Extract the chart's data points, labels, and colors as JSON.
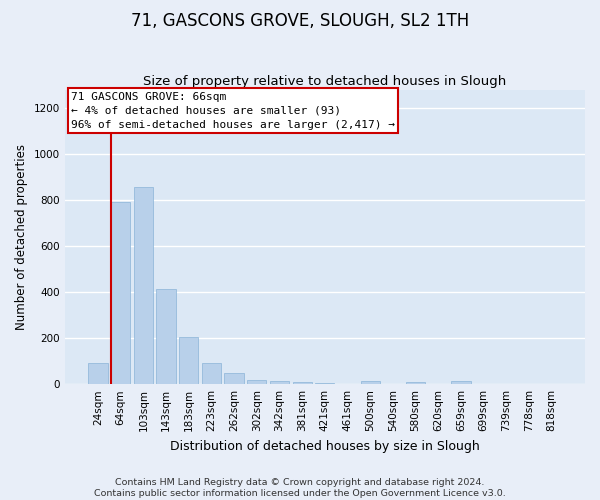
{
  "title1": "71, GASCONS GROVE, SLOUGH, SL2 1TH",
  "title2": "Size of property relative to detached houses in Slough",
  "xlabel": "Distribution of detached houses by size in Slough",
  "ylabel": "Number of detached properties",
  "categories": [
    "24sqm",
    "64sqm",
    "103sqm",
    "143sqm",
    "183sqm",
    "223sqm",
    "262sqm",
    "302sqm",
    "342sqm",
    "381sqm",
    "421sqm",
    "461sqm",
    "500sqm",
    "540sqm",
    "580sqm",
    "620sqm",
    "659sqm",
    "699sqm",
    "739sqm",
    "778sqm",
    "818sqm"
  ],
  "values": [
    93,
    793,
    857,
    415,
    203,
    90,
    50,
    20,
    15,
    10,
    5,
    0,
    15,
    0,
    10,
    0,
    15,
    0,
    0,
    0,
    0
  ],
  "bar_color": "#b8d0ea",
  "bar_edge_color": "#8ab4d8",
  "property_line_color": "#cc0000",
  "annotation_line1": "71 GASCONS GROVE: 66sqm",
  "annotation_line2": "← 4% of detached houses are smaller (93)",
  "annotation_line3": "96% of semi-detached houses are larger (2,417) →",
  "annotation_box_edge_color": "#cc0000",
  "ylim": [
    0,
    1280
  ],
  "yticks": [
    0,
    200,
    400,
    600,
    800,
    1000,
    1200
  ],
  "bg_color": "#dce8f5",
  "fig_bg_color": "#e8eef8",
  "grid_color": "#ffffff",
  "title1_fontsize": 12,
  "title2_fontsize": 9.5,
  "xlabel_fontsize": 9,
  "ylabel_fontsize": 8.5,
  "tick_fontsize": 7.5,
  "annot_fontsize": 8,
  "footer1": "Contains HM Land Registry data © Crown copyright and database right 2024.",
  "footer2": "Contains public sector information licensed under the Open Government Licence v3.0.",
  "footer_fontsize": 6.8
}
